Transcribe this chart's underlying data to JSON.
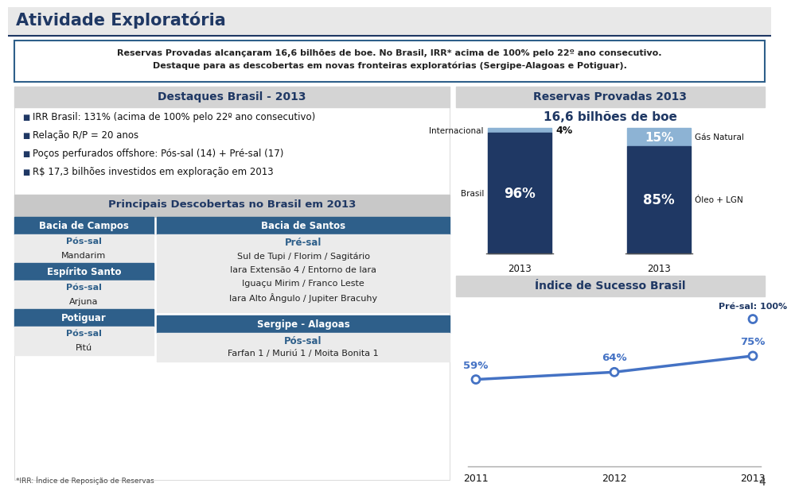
{
  "title": "Atividade Exploratória",
  "banner_text1": "Reservas Provadas alcançaram 16,6 bilhões de boe. No Brasil, IRR* acima de 100% pelo 22º ano consecutivo.",
  "banner_text2": "Destaque para as descobertas em novas fronteiras exploratórias (Sergipe-Alagoas e Potiguar).",
  "left_header": "Destaques Brasil - 2013",
  "bullet1": "IRR Brasil: 131% (acima de 100% pelo 22º ano consecutivo)",
  "bullet2": "Relação R/P = 20 anos",
  "bullet3": "Poços perfurados offshore: Pós-sal (14) + Pré-sal (17)",
  "bullet4": "R$ 17,3 bilhões investidos em exploração em 2013",
  "discoveries_header": "Principais Descobertas no Brasil em 2013",
  "campos_header": "Bacia de Campos",
  "campos_sub1": "Pós-sal",
  "campos_items1": "Mandarim",
  "espirito_header": "Espírito Santo",
  "espirito_sub1": "Pós-sal",
  "espirito_items1": "Arjuna",
  "potiguar_header": "Potiguar",
  "potiguar_sub1": "Pós-sal",
  "potiguar_items1": "Pitú",
  "santos_header": "Bacia de Santos",
  "santos_sub1": "Pré-sal",
  "santos_line1": "Sul de Tupi / Florim / Sagitário",
  "santos_line2": "Iara Extensão 4 / Entorno de Iara",
  "santos_line3": "Iguaçu Mirim / Franco Leste",
  "santos_line4": "Iara Alto Ângulo / Jupiter Bracuhy",
  "sergipe_header": "Sergipe - Alagoas",
  "sergipe_sub1": "Pós-sal",
  "sergipe_items": "Farfan 1 / Muriú 1 / Moita Bonita 1",
  "right_header": "Reservas Provadas 2013",
  "right_subtitle": "16,6 bilhões de boe",
  "bar1_label_left_top": "Internacional",
  "bar1_top_label": "4%",
  "bar1_bottom_label": "96%",
  "bar1_left_bottom": "Brasil",
  "bar2_top_label": "15%",
  "bar2_bottom_label": "85%",
  "bar2_right_top": "Gás Natural",
  "bar2_right_bottom": "Óleo + LGN",
  "bar_year": "2013",
  "sucesso_header": "Índice de Sucesso Brasil",
  "line_years": [
    2011,
    2012,
    2013
  ],
  "line_values": [
    59,
    64,
    75
  ],
  "presal_label": "Pré-sal: 100%",
  "presal_value": 100,
  "footnote": "*IRR: Índice de Reposição de Reservas",
  "page_number": "4",
  "dark_blue": "#1f3864",
  "medium_blue": "#2e5f8a",
  "light_blue_bar": "#8db3d4",
  "line_blue": "#4472c4",
  "header_gray": "#d4d4d4",
  "disc_gray": "#c8c8c8",
  "section_header_bg": "#2e5f8a",
  "banner_border": "#2e5f8a",
  "bg_white": "#ffffff",
  "text_dark": "#1f3864",
  "cell_bg": "#ebebeb"
}
